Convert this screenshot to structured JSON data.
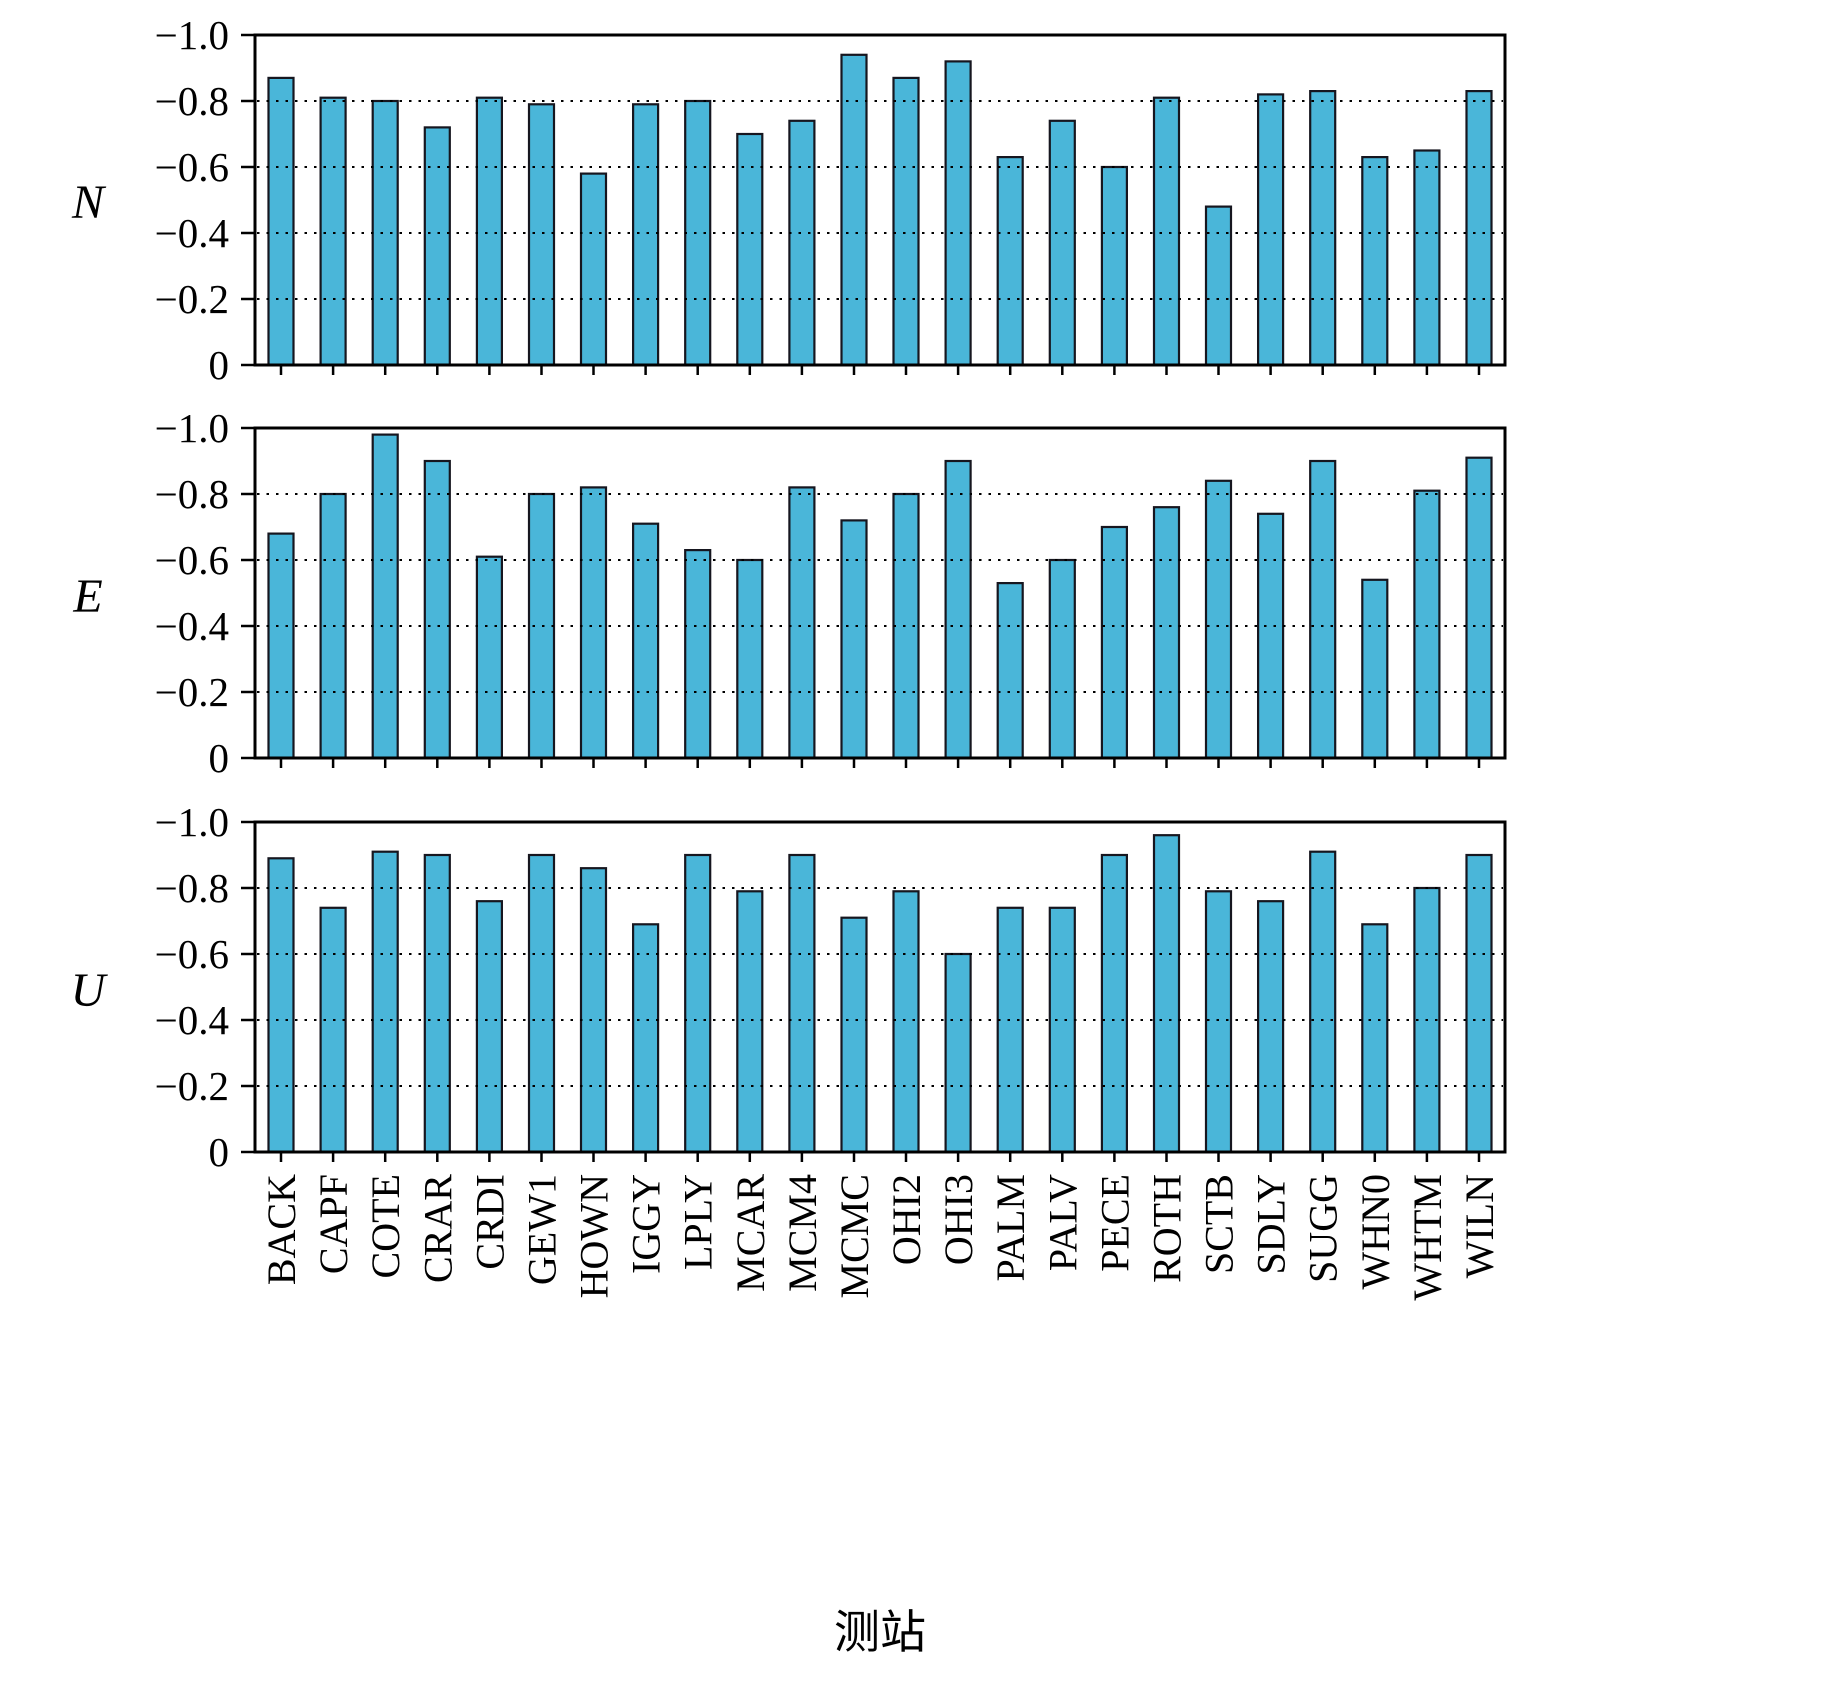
{
  "chart_data": {
    "type": "bar",
    "title": "",
    "xlabel": "测站",
    "ylabel_panels": [
      "N",
      "E",
      "U"
    ],
    "ylim": [
      0,
      -1.0
    ],
    "yticks": [
      {
        "label": "−1.0",
        "value": -1.0
      },
      {
        "label": "−0.8",
        "value": -0.8
      },
      {
        "label": "−0.6",
        "value": -0.6
      },
      {
        "label": "−0.4",
        "value": -0.4
      },
      {
        "label": "−0.2",
        "value": -0.2
      },
      {
        "label": "0",
        "value": 0
      }
    ],
    "gridlines": [
      -0.8,
      -0.6,
      -0.4,
      -0.2
    ],
    "grid_style": "dotted-horizontal",
    "legend": "none",
    "bar_fill": "#4ab6d9",
    "bar_stroke": "#16161f",
    "axis_color": "#000000",
    "categories": [
      "BACK",
      "CAPF",
      "COTE",
      "CRAR",
      "CRDI",
      "GEW1",
      "HOWN",
      "IGGY",
      "LPLY",
      "MCAR",
      "MCM4",
      "MCMC",
      "OHI2",
      "OHI3",
      "PALM",
      "PALV",
      "PECE",
      "ROTH",
      "SCTB",
      "SDLY",
      "SUGG",
      "WHN0",
      "WHTM",
      "WILN"
    ],
    "series": [
      {
        "name": "N",
        "values": [
          -0.87,
          -0.81,
          -0.8,
          -0.72,
          -0.81,
          -0.79,
          -0.58,
          -0.79,
          -0.8,
          -0.7,
          -0.74,
          -0.94,
          -0.87,
          -0.92,
          -0.63,
          -0.74,
          -0.6,
          -0.81,
          -0.48,
          -0.82,
          -0.83,
          -0.63,
          -0.65,
          -0.83
        ]
      },
      {
        "name": "E",
        "values": [
          -0.68,
          -0.8,
          -0.98,
          -0.9,
          -0.61,
          -0.8,
          -0.82,
          -0.71,
          -0.63,
          -0.6,
          -0.82,
          -0.72,
          -0.8,
          -0.9,
          -0.53,
          -0.6,
          -0.7,
          -0.76,
          -0.84,
          -0.74,
          -0.9,
          -0.54,
          -0.81,
          -0.91
        ]
      },
      {
        "name": "U",
        "values": [
          -0.89,
          -0.74,
          -0.91,
          -0.9,
          -0.76,
          -0.9,
          -0.86,
          -0.69,
          -0.9,
          -0.79,
          -0.9,
          -0.71,
          -0.79,
          -0.6,
          -0.74,
          -0.74,
          -0.9,
          -0.96,
          -0.79,
          -0.76,
          -0.91,
          -0.69,
          -0.8,
          -0.9
        ]
      }
    ]
  }
}
